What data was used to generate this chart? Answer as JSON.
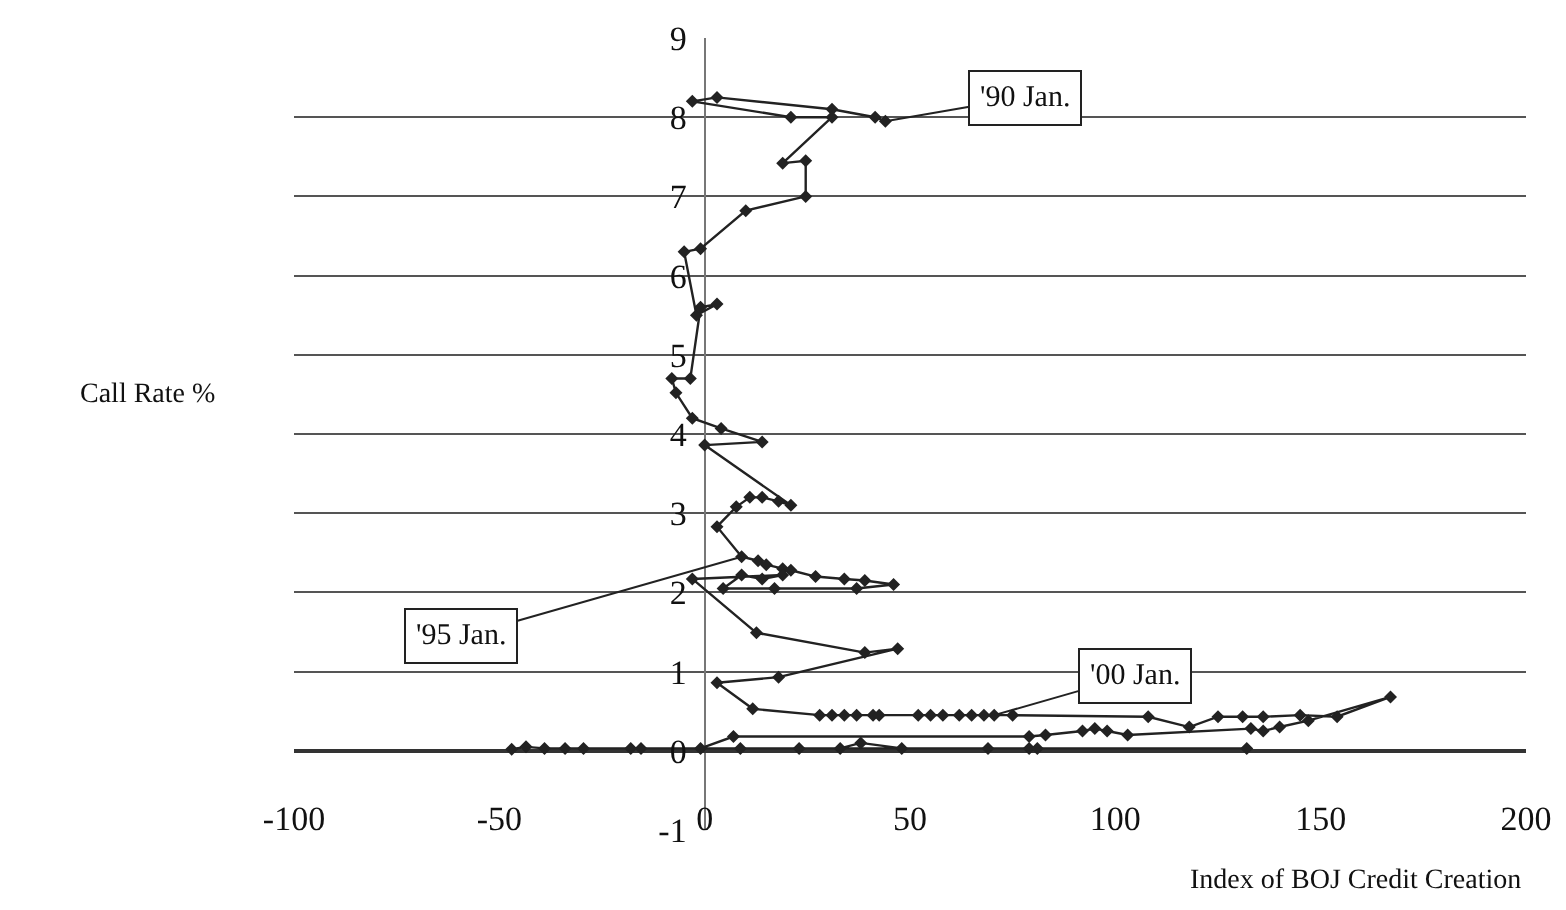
{
  "chart_data": {
    "type": "line",
    "xlabel": "Index of BOJ Credit Creation",
    "ylabel": "Call Rate %",
    "xlim": [
      -100,
      200
    ],
    "xticks": [
      -100,
      -50,
      0,
      50,
      100,
      150,
      200
    ],
    "ylim": [
      -1,
      9
    ],
    "yticks": [
      -1,
      0,
      1,
      2,
      3,
      4,
      5,
      6,
      7,
      8,
      9
    ],
    "grid": "y",
    "marker": "diamond",
    "line_style": "solid",
    "series": [
      {
        "color": "#222222",
        "x": [
          44,
          41.5,
          31,
          3,
          -3,
          21,
          31,
          19,
          24.6,
          24.6,
          10,
          -1,
          -5,
          -2,
          3,
          -1,
          -3.5,
          -8,
          -7,
          -3,
          4,
          14,
          0,
          21,
          18,
          14,
          11,
          7.7,
          3,
          9,
          13,
          15,
          19,
          21,
          27,
          34,
          39,
          46,
          37,
          17,
          4.5,
          9,
          14,
          19,
          -3,
          12.6,
          39,
          47,
          18,
          3,
          11.7,
          28,
          31,
          34,
          37,
          41,
          42.5,
          52,
          55,
          58,
          62,
          65,
          68,
          70.5,
          75,
          108,
          118,
          125,
          131,
          136,
          145,
          154,
          167,
          147,
          140,
          136,
          133,
          103,
          98,
          95,
          92,
          83,
          79,
          7,
          -1,
          8.7,
          23,
          33,
          38,
          48,
          69,
          79,
          81,
          132,
          -15.5,
          -18,
          -29.5,
          -34,
          -39,
          -43.5,
          -47
        ],
        "values": [
          7.95,
          8.0,
          8.1,
          8.25,
          8.2,
          8.0,
          8.0,
          7.42,
          7.45,
          7.0,
          6.82,
          6.34,
          6.3,
          5.5,
          5.64,
          5.6,
          4.7,
          4.7,
          4.52,
          4.2,
          4.07,
          3.9,
          3.86,
          3.1,
          3.15,
          3.2,
          3.2,
          3.08,
          2.83,
          2.45,
          2.4,
          2.35,
          2.3,
          2.28,
          2.2,
          2.17,
          2.15,
          2.1,
          2.05,
          2.05,
          2.05,
          2.22,
          2.17,
          2.22,
          2.17,
          1.49,
          1.24,
          1.29,
          0.93,
          0.86,
          0.53,
          0.45,
          0.45,
          0.45,
          0.45,
          0.45,
          0.45,
          0.45,
          0.45,
          0.45,
          0.45,
          0.45,
          0.45,
          0.45,
          0.45,
          0.43,
          0.3,
          0.43,
          0.43,
          0.43,
          0.45,
          0.43,
          0.68,
          0.38,
          0.3,
          0.25,
          0.28,
          0.2,
          0.25,
          0.28,
          0.25,
          0.2,
          0.18,
          0.18,
          0.03,
          0.03,
          0.03,
          0.03,
          0.1,
          0.03,
          0.03,
          0.03,
          0.03,
          0.03,
          0.03,
          0.03,
          0.03,
          0.03,
          0.03,
          0.05,
          0.02
        ]
      }
    ],
    "annotations": [
      {
        "text": "'90 Jan.",
        "x": 44,
        "y": 7.95
      },
      {
        "text": "'95 Jan.",
        "x": 9,
        "y": 2.45
      },
      {
        "text": "'00 Jan.",
        "x": 70.5,
        "y": 0.45
      }
    ]
  }
}
